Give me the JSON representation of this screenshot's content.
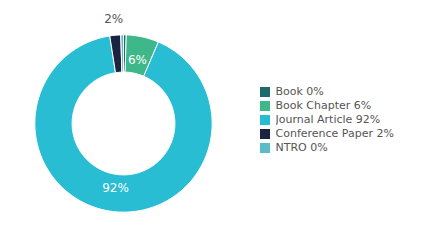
{
  "chart_data": {
    "type": "pie",
    "categories": [
      "Book 0%",
      "Book Chapter 6%",
      "Journal Article 92%",
      "Conference Paper 2%",
      "NTRO 0%"
    ],
    "values": [
      0.5,
      6,
      92,
      2,
      0.5
    ],
    "value_labels": [
      null,
      "6%",
      "92%",
      "2%",
      null
    ],
    "data_labels": true,
    "colors": [
      "#1e6b6b",
      "#3eb88a",
      "#29bdd4",
      "#1a2340",
      "#5bbcc8"
    ],
    "legend": "right"
  }
}
